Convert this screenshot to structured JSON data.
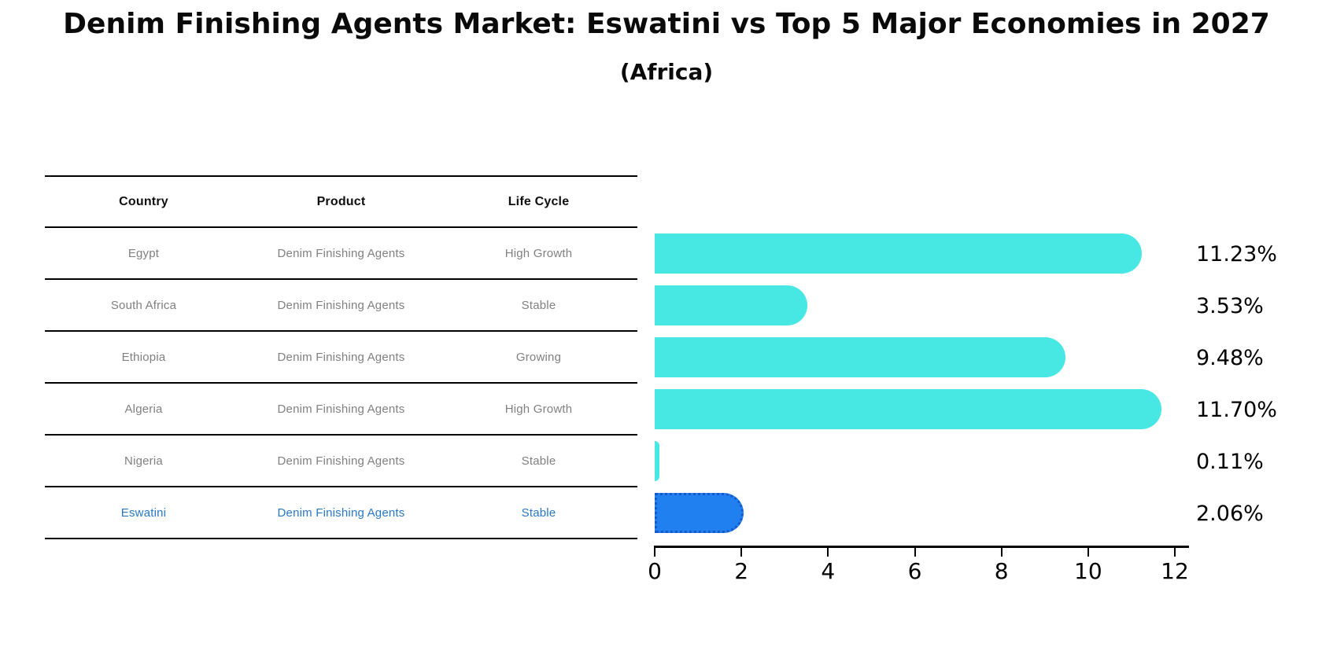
{
  "title": "Denim Finishing Agents Market: Eswatini vs Top 5 Major Economies in 2027",
  "subtitle": "(Africa)",
  "table": {
    "headers": [
      "Country",
      "Product",
      "Life Cycle"
    ],
    "rows": [
      {
        "country": "Egypt",
        "product": "Denim Finishing Agents",
        "life_cycle": "High Growth",
        "highlighted": false
      },
      {
        "country": "South Africa",
        "product": "Denim Finishing Agents",
        "life_cycle": "Stable",
        "highlighted": false
      },
      {
        "country": "Ethiopia",
        "product": "Denim Finishing Agents",
        "life_cycle": "Growing",
        "highlighted": false
      },
      {
        "country": "Algeria",
        "product": "Denim Finishing Agents",
        "life_cycle": "High Growth",
        "highlighted": false
      },
      {
        "country": "Nigeria",
        "product": "Denim Finishing Agents",
        "life_cycle": "Stable",
        "highlighted": false
      },
      {
        "country": "Eswatini",
        "product": "Denim Finishing Agents",
        "life_cycle": "Stable",
        "highlighted": true
      }
    ]
  },
  "chart_data": {
    "type": "bar",
    "orientation": "horizontal",
    "title": "Denim Finishing Agents Market: Eswatini vs Top 5 Major Economies in 2027 (Africa)",
    "categories": [
      "Egypt",
      "South Africa",
      "Ethiopia",
      "Algeria",
      "Nigeria",
      "Eswatini"
    ],
    "values": [
      11.23,
      3.53,
      9.48,
      11.7,
      0.11,
      2.06
    ],
    "value_labels": [
      "11.23%",
      "3.53%",
      "9.48%",
      "11.70%",
      "0.11%",
      "2.06%"
    ],
    "highlight_index": 5,
    "xlabel": "",
    "ylabel": "",
    "xlim": [
      0,
      12
    ],
    "xticks": [
      0,
      2,
      4,
      6,
      8,
      10,
      12
    ],
    "grid": false,
    "legend": "none"
  },
  "colors": {
    "bar": "#47e7e4",
    "highlight_bar": "#2080ef",
    "highlight_border": "#1558c8",
    "table_text": "#808080",
    "highlight_text": "#2878c8",
    "header_text": "#0f0f0f",
    "axis": "#000000",
    "background": "#ffffff"
  }
}
